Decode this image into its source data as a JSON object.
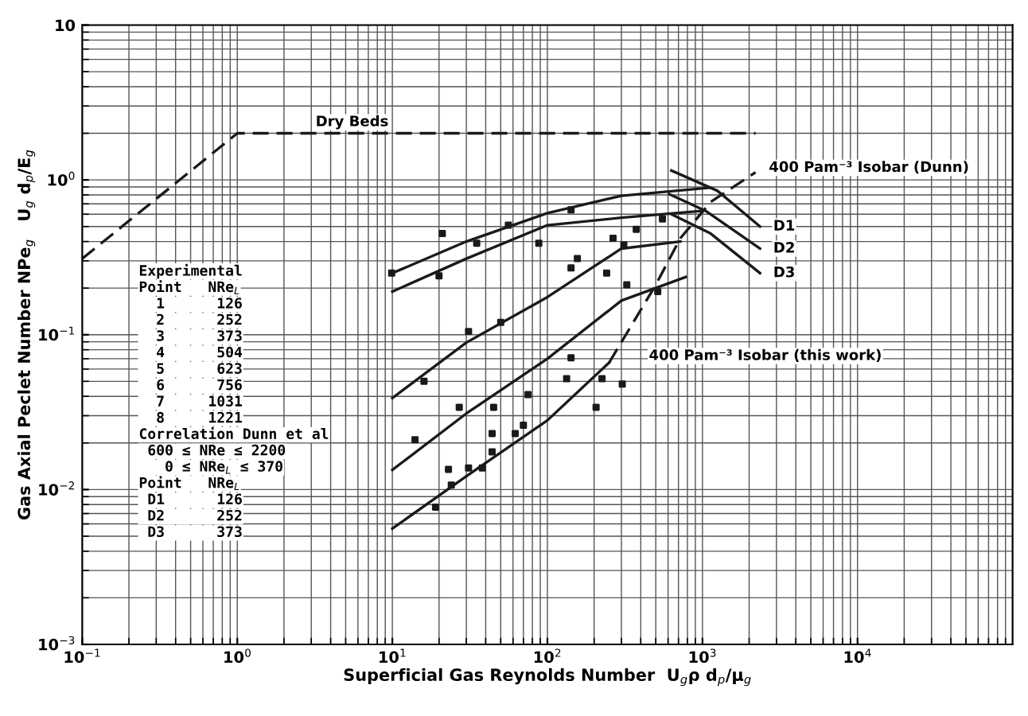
{
  "chart_data": {
    "type": "line",
    "xlabel": "Superficial Gas Reynolds Number  U$_{g}$ρ d$_{p}$/μ$_{g}$",
    "ylabel": "Gas Axial Peclet Number NPe$_{g}$   U$_{g}$ d$_{p}$/E$_{g}$",
    "log": "xy",
    "grid": true,
    "xlim": [
      0.1,
      100000
    ],
    "ylim": [
      0.001,
      10
    ],
    "xticks": [
      {
        "value": 0.1,
        "label": "10$^{−1}$"
      },
      {
        "value": 1,
        "label": "10$^{0}$"
      },
      {
        "value": 10,
        "label": "10$^{1}$"
      },
      {
        "value": 100,
        "label": "10$^{2}$"
      },
      {
        "value": 1000,
        "label": "10$^{3}$"
      },
      {
        "value": 10000,
        "label": "10$^{4}$"
      }
    ],
    "yticks": [
      {
        "value": 0.001,
        "label": "10$^{−3}$"
      },
      {
        "value": 0.01,
        "label": "10$^{−2}$"
      },
      {
        "value": 0.1,
        "label": "10$^{−1}$"
      },
      {
        "value": 1,
        "label": "10$^{0}$"
      },
      10
    ],
    "series": [
      {
        "type": "line",
        "color": "#1a1a1a",
        "line_style": "dashed",
        "x": [
          0.1,
          1,
          2200
        ],
        "values": [
          0.31,
          2.0,
          2.0
        ]
      },
      {
        "type": "line",
        "color": "#1a1a1a",
        "line_style": "solid",
        "x": [
          10,
          30,
          100,
          300,
          1100
        ],
        "values": [
          0.25,
          0.4,
          0.61,
          0.79,
          0.89
        ]
      },
      {
        "type": "line",
        "color": "#1a1a1a",
        "line_style": "solid",
        "x": [
          10,
          30,
          100,
          300,
          970
        ],
        "values": [
          0.19,
          0.31,
          0.51,
          0.57,
          0.63
        ]
      },
      {
        "type": "line",
        "color": "#1a1a1a",
        "line_style": "solid",
        "x": [
          10,
          30,
          100,
          300,
          720
        ],
        "values": [
          0.039,
          0.089,
          0.175,
          0.36,
          0.4
        ]
      },
      {
        "type": "line",
        "color": "#1a1a1a",
        "line_style": "solid",
        "x": [
          10,
          30,
          100,
          300,
          780
        ],
        "values": [
          0.0134,
          0.031,
          0.07,
          0.166,
          0.236
        ]
      },
      {
        "type": "line",
        "color": "#1a1a1a",
        "line_style": "solid",
        "x": [
          10,
          30,
          100,
          250
        ],
        "values": [
          0.0056,
          0.0122,
          0.028,
          0.066
        ]
      },
      {
        "type": "line",
        "color": "#1a1a1a",
        "line_style": "dashed",
        "x": [
          250,
          500,
          720,
          1130,
          2200
        ],
        "values": [
          0.066,
          0.21,
          0.42,
          0.72,
          1.12
        ]
      },
      {
        "type": "line",
        "color": "#1a1a1a",
        "line_style": "solid",
        "x": [
          630,
          1250,
          2350
        ],
        "values": [
          1.15,
          0.85,
          0.5
        ]
      },
      {
        "type": "line",
        "color": "#1a1a1a",
        "line_style": "solid",
        "x": [
          610,
          1050,
          2350
        ],
        "values": [
          0.81,
          0.63,
          0.36
        ]
      },
      {
        "type": "line",
        "color": "#1a1a1a",
        "line_style": "solid",
        "x": [
          630,
          1130,
          2350
        ],
        "values": [
          0.6,
          0.45,
          0.25
        ]
      },
      {
        "type": "scatter",
        "color": "#1a1a1a",
        "marker": "square",
        "x": [
          21,
          35,
          56,
          88,
          142,
          265,
          311,
          374,
          552,
          156,
          142,
          241,
          325,
          515,
          20,
          31,
          50,
          16,
          142,
          133,
          75,
          45,
          27,
          14,
          44,
          44,
          62,
          70,
          23,
          31,
          38,
          24,
          19,
          225,
          304,
          206,
          9.9
        ],
        "values": [
          0.45,
          0.39,
          0.51,
          0.39,
          0.64,
          0.42,
          0.38,
          0.48,
          0.56,
          0.31,
          0.27,
          0.25,
          0.21,
          0.19,
          0.24,
          0.105,
          0.12,
          0.05,
          0.071,
          0.052,
          0.041,
          0.034,
          0.034,
          0.021,
          0.023,
          0.0175,
          0.023,
          0.026,
          0.0135,
          0.0138,
          0.0138,
          0.0107,
          0.0077,
          0.052,
          0.048,
          0.034,
          0.25
        ]
      }
    ],
    "annotations": [
      {
        "text": "Dry Beds",
        "x": 3.2,
        "y": 2.0
      },
      {
        "text": "400 Pam⁻³ Isobar (Dunn)",
        "x": 2200,
        "y": 1.12
      },
      {
        "text": "400 Pam⁻³ Isobar (this work)",
        "x": 250,
        "y": 0.066
      },
      {
        "text": "D1",
        "x": 2350,
        "y": 0.5
      },
      {
        "text": "D2",
        "x": 2350,
        "y": 0.36
      },
      {
        "text": "D3",
        "x": 2350,
        "y": 0.25
      },
      "Experimental",
      "Point   NRe$_{L}$",
      "  1      126",
      "  2      252",
      "  3      373",
      "  4      504",
      "  5      623",
      "  6      756",
      "  7     1031",
      "  8     1221",
      "Correlation Dunn et al",
      " 600 ≤ NRe ≤ 2200",
      "   0 ≤ NRe$_{L}$ ≤ 370",
      "Point   NRe$_{L}$",
      " D1      126",
      " D2      252",
      " D3      373"
    ]
  }
}
